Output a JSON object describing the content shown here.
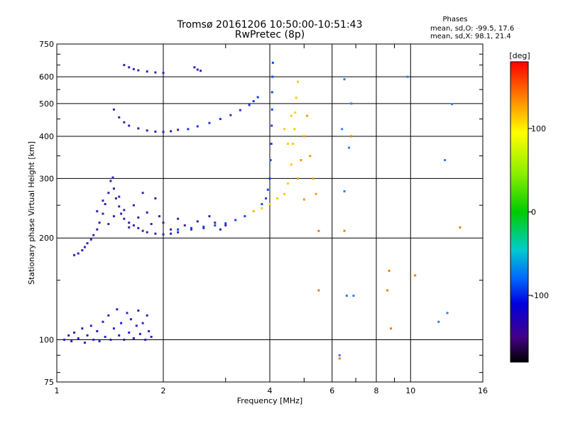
{
  "chart_data": {
    "type": "scatter",
    "title": "Tromsø 20161206 10:50:00-10:51:43",
    "subtitle": "RwPretec (8p)",
    "xlabel": "Frequency [MHz]",
    "ylabel": "Stationary phase Virtual Height [km]",
    "xscale": "log",
    "yscale": "log",
    "xlim": [
      1,
      16
    ],
    "ylim": [
      75,
      750
    ],
    "xticks": [
      1,
      2,
      4,
      6,
      8,
      10,
      16
    ],
    "xtick_labels": [
      "1",
      "2",
      "4",
      "6",
      "8",
      "10",
      "16"
    ],
    "yticks": [
      75,
      100,
      200,
      300,
      400,
      500,
      600,
      750
    ],
    "ytick_labels": [
      "75",
      "100",
      "200",
      "300",
      "400",
      "500",
      "600",
      "750"
    ],
    "grid": true,
    "stats": {
      "title": "Phases",
      "line_o": "mean, sd,O: -99.5, 17.6",
      "line_x": "mean, sd,X:  98.1, 21.4"
    },
    "colorbar": {
      "label": "[deg]",
      "range": [
        -180,
        180
      ],
      "ticks": [
        100,
        0,
        -100
      ],
      "tick_labels": [
        "100",
        "0",
        "-100"
      ],
      "stops": [
        {
          "value": 180,
          "color": "#ff0000"
        },
        {
          "value": 135,
          "color": "#ff8800"
        },
        {
          "value": 95,
          "color": "#ffff00"
        },
        {
          "value": 45,
          "color": "#88ee00"
        },
        {
          "value": 0,
          "color": "#00cc00"
        },
        {
          "value": -45,
          "color": "#00cccc"
        },
        {
          "value": -80,
          "color": "#0066ff"
        },
        {
          "value": -110,
          "color": "#0000dd"
        },
        {
          "value": -150,
          "color": "#440088"
        },
        {
          "value": -180,
          "color": "#000000"
        }
      ]
    },
    "series": [
      {
        "phase": -100,
        "color": "#2222cc",
        "points": [
          [
            1.05,
            100
          ],
          [
            1.08,
            103
          ],
          [
            1.1,
            99
          ],
          [
            1.12,
            105
          ],
          [
            1.15,
            101
          ],
          [
            1.18,
            108
          ],
          [
            1.2,
            98
          ],
          [
            1.22,
            103
          ],
          [
            1.25,
            110
          ],
          [
            1.27,
            100
          ],
          [
            1.3,
            106
          ],
          [
            1.32,
            99
          ],
          [
            1.35,
            113
          ],
          [
            1.37,
            102
          ],
          [
            1.4,
            118
          ],
          [
            1.42,
            100
          ],
          [
            1.45,
            108
          ],
          [
            1.48,
            123
          ],
          [
            1.5,
            103
          ],
          [
            1.52,
            112
          ],
          [
            1.55,
            100
          ],
          [
            1.58,
            120
          ],
          [
            1.6,
            105
          ],
          [
            1.62,
            115
          ],
          [
            1.65,
            101
          ],
          [
            1.68,
            110
          ],
          [
            1.7,
            122
          ],
          [
            1.72,
            104
          ],
          [
            1.75,
            112
          ],
          [
            1.78,
            100
          ],
          [
            1.8,
            118
          ],
          [
            1.82,
            106
          ],
          [
            1.85,
            102
          ]
        ]
      },
      {
        "phase": -110,
        "color": "#2a22bb",
        "points": [
          [
            1.12,
            178
          ],
          [
            1.15,
            180
          ],
          [
            1.18,
            184
          ],
          [
            1.2,
            188
          ],
          [
            1.22,
            193
          ],
          [
            1.25,
            198
          ],
          [
            1.27,
            204
          ],
          [
            1.3,
            212
          ],
          [
            1.32,
            222
          ],
          [
            1.35,
            236
          ],
          [
            1.37,
            252
          ],
          [
            1.4,
            272
          ],
          [
            1.42,
            295
          ],
          [
            1.44,
            302
          ],
          [
            1.45,
            280
          ],
          [
            1.47,
            262
          ],
          [
            1.5,
            248
          ],
          [
            1.52,
            236
          ],
          [
            1.55,
            228
          ],
          [
            1.6,
            222
          ],
          [
            1.65,
            218
          ],
          [
            1.7,
            214
          ],
          [
            1.75,
            210
          ],
          [
            1.8,
            208
          ],
          [
            1.9,
            206
          ],
          [
            2.0,
            205
          ],
          [
            2.1,
            206
          ],
          [
            2.2,
            208
          ]
        ]
      },
      {
        "phase": -120,
        "color": "#3a22aa",
        "points": [
          [
            1.3,
            240
          ],
          [
            1.35,
            258
          ],
          [
            1.4,
            220
          ],
          [
            1.45,
            232
          ],
          [
            1.5,
            265
          ],
          [
            1.55,
            242
          ],
          [
            1.6,
            215
          ],
          [
            1.65,
            250
          ],
          [
            1.7,
            230
          ],
          [
            1.75,
            272
          ],
          [
            1.8,
            238
          ],
          [
            1.85,
            220
          ],
          [
            1.9,
            262
          ],
          [
            1.95,
            232
          ],
          [
            2.0,
            222
          ],
          [
            2.1,
            212
          ],
          [
            2.2,
            228
          ],
          [
            2.3,
            218
          ],
          [
            2.4,
            212
          ],
          [
            2.5,
            224
          ],
          [
            2.6,
            214
          ],
          [
            2.7,
            232
          ],
          [
            2.8,
            222
          ],
          [
            2.9,
            212
          ],
          [
            3.0,
            218
          ]
        ]
      },
      {
        "phase": -100,
        "color": "#1144ee",
        "points": [
          [
            2.2,
            212
          ],
          [
            2.4,
            214
          ],
          [
            2.6,
            216
          ],
          [
            2.8,
            218
          ],
          [
            3.0,
            221
          ],
          [
            3.2,
            226
          ],
          [
            3.4,
            232
          ],
          [
            3.6,
            240
          ],
          [
            3.8,
            252
          ],
          [
            3.9,
            262
          ],
          [
            3.95,
            278
          ],
          [
            4.0,
            300
          ],
          [
            4.02,
            340
          ],
          [
            4.04,
            380
          ],
          [
            4.05,
            430
          ],
          [
            4.06,
            480
          ],
          [
            4.06,
            540
          ],
          [
            4.07,
            600
          ],
          [
            4.08,
            660
          ]
        ]
      },
      {
        "phase": -120,
        "color": "#3322aa",
        "points": [
          [
            1.45,
            480
          ],
          [
            1.5,
            455
          ],
          [
            1.55,
            440
          ],
          [
            1.6,
            430
          ],
          [
            1.7,
            422
          ],
          [
            1.8,
            416
          ],
          [
            1.9,
            413
          ],
          [
            2.0,
            412
          ],
          [
            2.1,
            414
          ],
          [
            2.2,
            418
          ]
        ]
      },
      {
        "phase": -100,
        "color": "#2233dd",
        "points": [
          [
            2.35,
            420
          ],
          [
            2.5,
            428
          ],
          [
            2.7,
            438
          ],
          [
            2.9,
            450
          ],
          [
            3.1,
            462
          ],
          [
            3.3,
            478
          ],
          [
            3.5,
            495
          ],
          [
            3.6,
            508
          ],
          [
            3.7,
            522
          ]
        ]
      },
      {
        "phase": -110,
        "color": "#3322bb",
        "points": [
          [
            1.55,
            650
          ],
          [
            1.6,
            640
          ],
          [
            1.65,
            632
          ],
          [
            1.7,
            627
          ],
          [
            1.8,
            622
          ],
          [
            1.9,
            618
          ],
          [
            2.0,
            616
          ],
          [
            2.45,
            640
          ],
          [
            2.5,
            630
          ],
          [
            2.55,
            625
          ]
        ]
      },
      {
        "phase": 110,
        "color": "#ffcc00",
        "points": [
          [
            3.6,
            240
          ],
          [
            3.8,
            245
          ],
          [
            4.0,
            252
          ],
          [
            4.2,
            262
          ],
          [
            4.4,
            270
          ],
          [
            4.5,
            290
          ],
          [
            4.6,
            330
          ],
          [
            4.65,
            380
          ],
          [
            4.7,
            420
          ],
          [
            4.72,
            470
          ],
          [
            4.75,
            520
          ],
          [
            4.8,
            580
          ],
          [
            4.6,
            460
          ],
          [
            4.4,
            420
          ],
          [
            4.5,
            380
          ]
        ]
      },
      {
        "phase": 130,
        "color": "#ff9900",
        "points": [
          [
            4.8,
            300
          ],
          [
            4.9,
            340
          ],
          [
            5.0,
            400
          ],
          [
            5.1,
            460
          ],
          [
            5.2,
            350
          ],
          [
            5.3,
            300
          ],
          [
            5.4,
            270
          ],
          [
            5.0,
            260
          ]
        ]
      },
      {
        "phase": -90,
        "color": "#3377ff",
        "points": [
          [
            6.5,
            590
          ],
          [
            6.8,
            500
          ],
          [
            6.4,
            420
          ],
          [
            6.7,
            370
          ],
          [
            6.5,
            275
          ],
          [
            6.6,
            135
          ],
          [
            6.9,
            135
          ],
          [
            9.8,
            600
          ],
          [
            12.5,
            340
          ],
          [
            13.1,
            498
          ],
          [
            12.7,
            120
          ],
          [
            12.0,
            113
          ],
          [
            6.3,
            90
          ]
        ]
      },
      {
        "phase": 140,
        "color": "#ff7700",
        "points": [
          [
            6.3,
            88
          ],
          [
            6.5,
            210
          ],
          [
            5.5,
            210
          ],
          [
            6.8,
            400
          ],
          [
            8.7,
            160
          ],
          [
            8.6,
            140
          ],
          [
            8.8,
            108
          ],
          [
            10.3,
            155
          ],
          [
            13.8,
            215
          ],
          [
            5.5,
            140
          ]
        ]
      }
    ]
  }
}
